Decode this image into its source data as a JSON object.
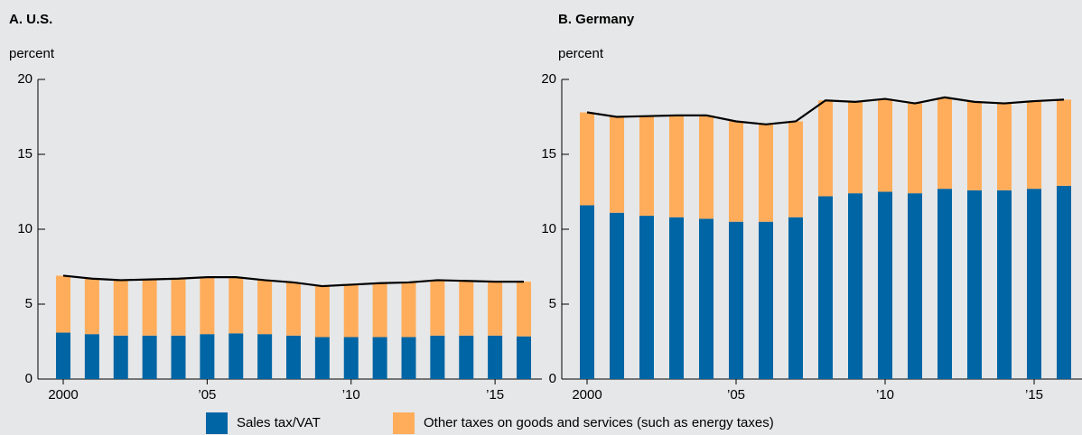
{
  "chart_data": [
    {
      "type": "bar",
      "stacked": true,
      "title": "A. U.S.",
      "y_label": "percent",
      "categories": [
        "2000",
        null,
        null,
        null,
        null,
        "’05",
        null,
        null,
        null,
        null,
        "’10",
        null,
        null,
        null,
        null,
        "’15",
        null
      ],
      "series": [
        {
          "name": "Sales tax/VAT",
          "color": "#0065a4",
          "values": [
            3.1,
            3.0,
            2.9,
            2.9,
            2.9,
            3.0,
            3.05,
            3.0,
            2.9,
            2.8,
            2.8,
            2.8,
            2.8,
            2.9,
            2.9,
            2.9,
            2.85
          ]
        },
        {
          "name": "Other taxes on goods and services (such as energy taxes)",
          "color": "#ffad5b",
          "values": [
            3.8,
            3.7,
            3.7,
            3.75,
            3.8,
            3.8,
            3.75,
            3.6,
            3.55,
            3.4,
            3.5,
            3.6,
            3.65,
            3.7,
            3.65,
            3.6,
            3.65
          ]
        }
      ],
      "total_line_color": "#000000",
      "ylim": [
        0,
        20
      ],
      "yticks": [
        0,
        5,
        10,
        15,
        20
      ]
    },
    {
      "type": "bar",
      "stacked": true,
      "title": "B. Germany",
      "y_label": "percent",
      "categories": [
        "2000",
        null,
        null,
        null,
        null,
        "’05",
        null,
        null,
        null,
        null,
        "’10",
        null,
        null,
        null,
        null,
        "’15",
        null
      ],
      "series": [
        {
          "color": "#0065a4",
          "values": [
            11.6,
            11.1,
            10.9,
            10.8,
            10.7,
            10.5,
            10.5,
            10.8,
            12.2,
            12.4,
            12.5,
            12.4,
            12.7,
            12.6,
            12.6,
            12.7,
            12.9
          ]
        },
        {
          "color": "#ffad5b",
          "values": [
            6.2,
            6.4,
            6.65,
            6.8,
            6.9,
            6.7,
            6.5,
            6.4,
            6.4,
            6.1,
            6.2,
            6.0,
            6.1,
            5.9,
            5.8,
            5.85,
            5.75
          ]
        }
      ],
      "total_line_color": "#000000",
      "ylim": [
        0,
        20
      ],
      "yticks": [
        0,
        5,
        10,
        15,
        20
      ]
    }
  ]
}
